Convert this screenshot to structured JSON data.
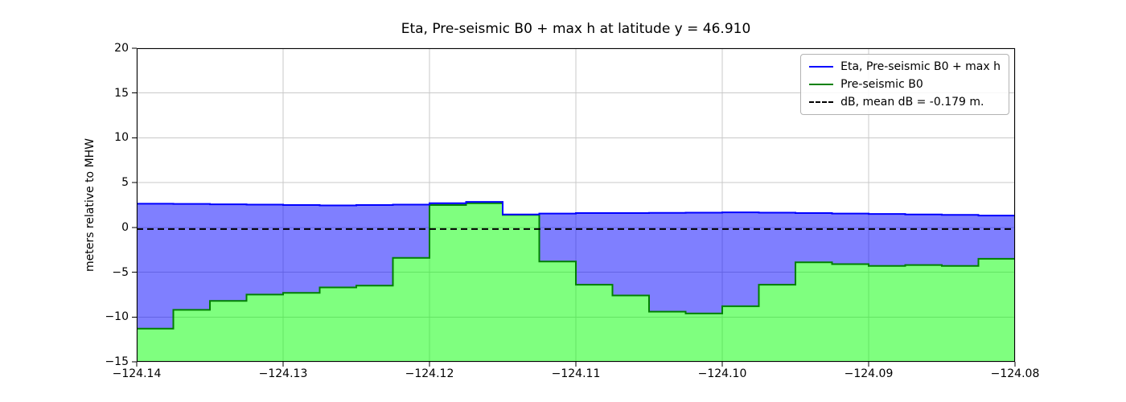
{
  "chart_data": {
    "type": "area",
    "title": "Eta, Pre-seismic B0 + max h at latitude y = 46.910",
    "xlabel": "",
    "x_axis": {
      "ticks": [
        {
          "value": -124.14,
          "label": "−124.14"
        },
        {
          "value": -124.13,
          "label": "−124.13"
        },
        {
          "value": -124.12,
          "label": "−124.12"
        },
        {
          "value": -124.11,
          "label": "−124.11"
        },
        {
          "value": -124.1,
          "label": "−124.10"
        },
        {
          "value": -124.09,
          "label": "−124.09"
        },
        {
          "value": -124.08,
          "label": "−124.08"
        }
      ]
    },
    "y_axis": {
      "label": "meters relative to MHW",
      "ticks": [
        {
          "value": 20,
          "label": "20"
        },
        {
          "value": 15,
          "label": "15"
        },
        {
          "value": 10,
          "label": "10"
        },
        {
          "value": 5,
          "label": "5"
        },
        {
          "value": 0,
          "label": "0"
        },
        {
          "value": -5,
          "label": "−5"
        },
        {
          "value": -10,
          "label": "−10"
        },
        {
          "value": -15,
          "label": "−15"
        }
      ]
    },
    "xlim": [
      -124.14,
      -124.08
    ],
    "ylim": [
      -15,
      20
    ],
    "grid": true,
    "legend_position": "upper right",
    "x_start": -124.14,
    "step_dx": 0.0025,
    "series": [
      {
        "id": "eta",
        "label": "Eta, Pre-seismic B0 + max h",
        "type": "step-line",
        "color": "#0000ff",
        "fill": "rgba(0,0,255,0.5)",
        "fill_between": "b0",
        "values": [
          2.65,
          2.62,
          2.58,
          2.55,
          2.5,
          2.45,
          2.5,
          2.55,
          2.7,
          2.85,
          1.45,
          1.55,
          1.6,
          1.6,
          1.62,
          1.65,
          1.68,
          1.65,
          1.6,
          1.55,
          1.5,
          1.45,
          1.4,
          1.32
        ]
      },
      {
        "id": "b0",
        "label": "Pre-seismic B0",
        "type": "step-line",
        "color": "#008000",
        "fill": "rgba(0,255,0,0.5)",
        "fill_between": "bottom",
        "values": [
          -11.3,
          -9.2,
          -8.2,
          -7.5,
          -7.3,
          -6.7,
          -6.5,
          -3.4,
          2.5,
          2.7,
          1.4,
          -3.8,
          -6.4,
          -7.6,
          -9.4,
          -9.6,
          -8.8,
          -6.4,
          -3.9,
          -4.1,
          -4.3,
          -4.2,
          -4.3,
          -3.5
        ]
      },
      {
        "id": "db",
        "label": "dB, mean dB = -0.179 m.",
        "type": "hline",
        "color": "#000000",
        "dashed": true,
        "value": -0.179,
        "mean_dB": -0.179
      }
    ],
    "colors": {
      "grid": "#c9c9c9",
      "axis": "#000000",
      "background": "#ffffff"
    }
  }
}
